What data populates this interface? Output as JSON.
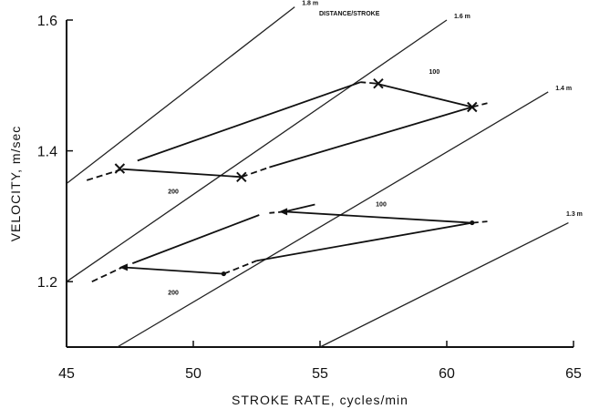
{
  "chart_data": {
    "type": "line",
    "title": "",
    "xlabel": "STROKE RATE, cycles/min",
    "ylabel": "VELOCITY, m/sec",
    "xlim": [
      45,
      65
    ],
    "ylim": [
      1.1,
      1.6
    ],
    "x_ticks": [
      45,
      50,
      55,
      60,
      65
    ],
    "x_tick_labels": [
      "45",
      "50",
      "55",
      "60",
      "65"
    ],
    "y_ticks": [
      1.2,
      1.4,
      1.6
    ],
    "y_tick_labels": [
      "1.2",
      "1.4",
      "1.6"
    ],
    "grid": false,
    "legend": "none",
    "iso_lines": {
      "title": "DISTANCE/STROKE",
      "lines": [
        {
          "label": "1.8 m",
          "points": [
            [
              45,
              1.35
            ],
            [
              54,
              1.62
            ]
          ]
        },
        {
          "label": "1.6 m",
          "points": [
            [
              45,
              1.2
            ],
            [
              60,
              1.6
            ]
          ]
        },
        {
          "label": "1.4 m",
          "points": [
            [
              47,
              1.1
            ],
            [
              64,
              1.49
            ]
          ]
        },
        {
          "label": "",
          "points": [
            [
              55,
              1.1
            ],
            [
              64.8,
              1.29
            ]
          ]
        }
      ],
      "label_1_3": "1.3 m"
    },
    "series": [
      {
        "name": "",
        "segments": [
          {
            "points": [
              [
                45.8,
                1.355
              ],
              [
                47.2,
                1.372
              ]
            ],
            "style": "dashed"
          },
          {
            "points": [
              [
                47.2,
                1.372
              ],
              [
                51.9,
                1.36
              ]
            ],
            "style": "solid"
          },
          {
            "points": [
              [
                51.9,
                1.36
              ],
              [
                53.0,
                1.375
              ]
            ],
            "style": "dashed"
          },
          {
            "points": [
              [
                53.0,
                1.375
              ],
              [
                61.0,
                1.467
              ]
            ],
            "style": "solid"
          },
          {
            "points": [
              [
                61.0,
                1.467
              ],
              [
                61.6,
                1.473
              ]
            ],
            "style": "dashed"
          },
          {
            "points": [
              [
                61.0,
                1.467
              ],
              [
                57.2,
                1.503
              ]
            ],
            "style": "solid"
          },
          {
            "points": [
              [
                57.2,
                1.503
              ],
              [
                56.6,
                1.505
              ]
            ],
            "style": "dashed"
          },
          {
            "points": [
              [
                56.6,
                1.505
              ],
              [
                47.8,
                1.385
              ]
            ],
            "style": "solid"
          }
        ],
        "markers": [
          {
            "x": 47.1,
            "y": 1.373,
            "symbol": "x"
          },
          {
            "x": 51.9,
            "y": 1.36,
            "symbol": "x"
          },
          {
            "x": 61.0,
            "y": 1.467,
            "symbol": "x"
          },
          {
            "x": 57.3,
            "y": 1.503,
            "symbol": "x"
          }
        ],
        "labels": [
          {
            "text": "200",
            "x": 49.0,
            "y": 1.335
          },
          {
            "text": "100",
            "x": 59.3,
            "y": 1.518
          }
        ]
      },
      {
        "name": "",
        "segments": [
          {
            "points": [
              [
                46.0,
                1.2
              ],
              [
                47.2,
                1.222
              ]
            ],
            "style": "dashed"
          },
          {
            "points": [
              [
                47.2,
                1.222
              ],
              [
                51.2,
                1.212
              ]
            ],
            "style": "solid"
          },
          {
            "points": [
              [
                51.2,
                1.212
              ],
              [
                52.5,
                1.232
              ]
            ],
            "style": "dashed"
          },
          {
            "points": [
              [
                52.5,
                1.232
              ],
              [
                61.0,
                1.29
              ]
            ],
            "style": "solid"
          },
          {
            "points": [
              [
                61.0,
                1.29
              ],
              [
                61.6,
                1.292
              ]
            ],
            "style": "dashed"
          },
          {
            "points": [
              [
                61.0,
                1.29
              ],
              [
                53.6,
                1.307
              ]
            ],
            "style": "solid"
          },
          {
            "points": [
              [
                53.6,
                1.307
              ],
              [
                53.0,
                1.305
              ]
            ],
            "style": "dashed"
          },
          {
            "points": [
              [
                53.6,
                1.307
              ],
              [
                54.8,
                1.318
              ]
            ],
            "style": "solid"
          },
          {
            "points": [
              [
                52.6,
                1.302
              ],
              [
                47.6,
                1.228
              ]
            ],
            "style": "solid"
          }
        ],
        "markers": [
          {
            "x": 47.3,
            "y": 1.222,
            "symbol": "arrow"
          },
          {
            "x": 51.2,
            "y": 1.212,
            "symbol": "dot"
          },
          {
            "x": 61.0,
            "y": 1.29,
            "symbol": "dot"
          },
          {
            "x": 53.6,
            "y": 1.307,
            "symbol": "arrow"
          }
        ],
        "labels": [
          {
            "text": "200",
            "x": 49.0,
            "y": 1.18
          },
          {
            "text": "100",
            "x": 57.2,
            "y": 1.315
          }
        ]
      }
    ]
  }
}
